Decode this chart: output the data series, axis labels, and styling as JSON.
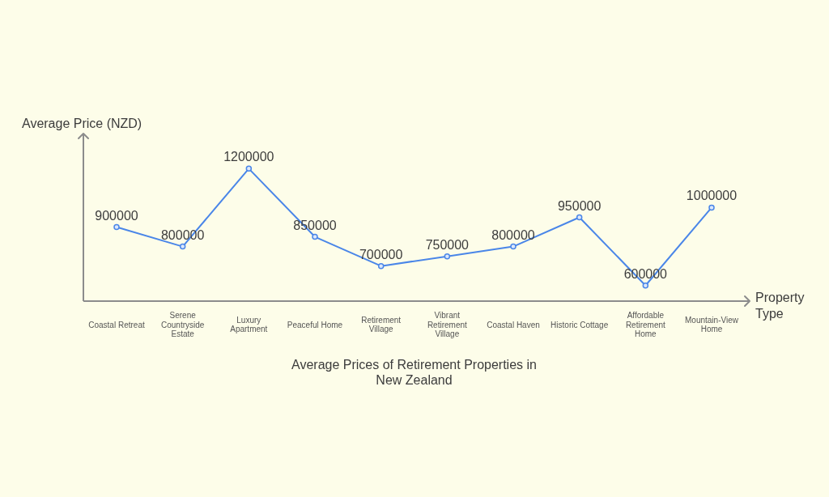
{
  "chart_data": {
    "type": "line",
    "title": "Average Prices of Retirement Properties in New Zealand",
    "xlabel": "Property Type",
    "ylabel": "Average Price (NZD)",
    "categories": [
      "Coastal Retreat",
      "Serene Countryside Estate",
      "Luxury Apartment",
      "Peaceful Home",
      "Retirement Village",
      "Vibrant Retirement Village",
      "Coastal Haven",
      "Historic Cottage",
      "Affordable Retirement Home",
      "Mountain-View Home"
    ],
    "values": [
      900000,
      800000,
      1200000,
      850000,
      700000,
      750000,
      800000,
      950000,
      600000,
      1000000
    ],
    "color": "#4a86e8",
    "ylim": [
      520000,
      1380000
    ],
    "data_labels": true,
    "marker": "circle",
    "line_style": "solid",
    "tick_labels": "x"
  }
}
